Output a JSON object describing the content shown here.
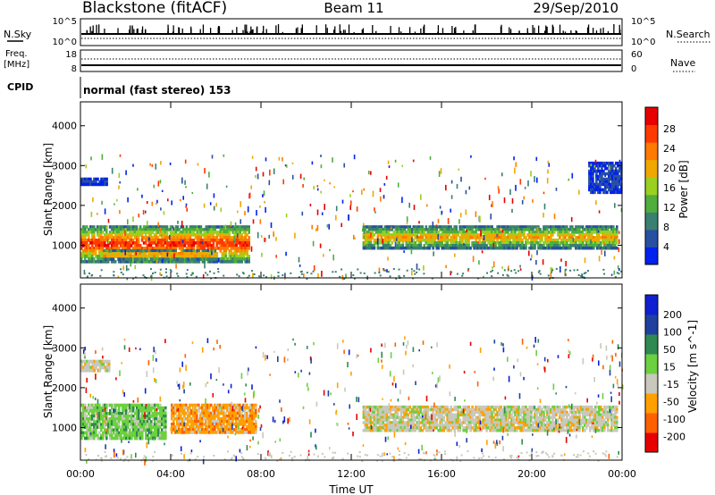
{
  "header": {
    "station": "Blackstone (fitACF)",
    "beam": "Beam 11",
    "date": "29/Sep/2010"
  },
  "top_panels": {
    "nsky_label": "N.Sky",
    "nsky_ticks": [
      "10^5",
      "10^0"
    ],
    "nsearch_label": "N.Search",
    "nsearch_ticks": [
      "10^5",
      "10^0"
    ],
    "freq_label_1": "Freq.",
    "freq_label_2": "[MHz]",
    "freq_ticks": [
      "18",
      "8"
    ],
    "nave_label": "Nave",
    "nave_ticks": [
      "60",
      "0"
    ],
    "cpid_label": "CPID",
    "cpid_text": "normal (fast stereo) 153"
  },
  "colors": {
    "power": [
      "#0022ee",
      "#2850a0",
      "#3a8070",
      "#4fae3c",
      "#9ad020",
      "#f0a800",
      "#ff7a00",
      "#ff3a00",
      "#e80000"
    ],
    "velocity": [
      "#e80000",
      "#ff6000",
      "#ffa000",
      "#c8c8bc",
      "#6cd040",
      "#2e8a50",
      "#2040a0",
      "#1020d0"
    ]
  },
  "chart_data": [
    {
      "type": "heatmap",
      "title": "",
      "xlabel": "Time UT",
      "ylabel": "Slant Range [km]",
      "xlim": [
        0,
        24
      ],
      "ylim": [
        180,
        4600
      ],
      "x_ticks": [
        "00:00",
        "04:00",
        "08:00",
        "12:00",
        "16:00",
        "20:00",
        "00:00"
      ],
      "y_ticks": [
        "1000",
        "2000",
        "3000",
        "4000"
      ],
      "colorbar": {
        "label": "Power [dB]",
        "ticks": [
          "28",
          "24",
          "20",
          "16",
          "12",
          "8",
          "4"
        ]
      },
      "bands": [
        {
          "t0": 0,
          "t1": 7.5,
          "r0": 560,
          "r1": 1500,
          "c": 8
        },
        {
          "t0": 1,
          "t1": 6,
          "r0": 620,
          "r1": 900,
          "c": 8
        },
        {
          "t0": 12.5,
          "t1": 23.8,
          "r0": 900,
          "r1": 1500,
          "c": 6
        },
        {
          "t0": 0,
          "t1": 1.2,
          "r0": 2500,
          "r1": 2700,
          "c": 1
        },
        {
          "t0": 22.5,
          "t1": 24,
          "r0": 2300,
          "r1": 3100,
          "c": 1
        }
      ]
    },
    {
      "type": "heatmap",
      "title": "",
      "xlabel": "Time UT",
      "ylabel": "Slant Range [km]",
      "xlim": [
        0,
        24
      ],
      "ylim": [
        180,
        4600
      ],
      "x_ticks": [
        "00:00",
        "04:00",
        "08:00",
        "12:00",
        "16:00",
        "20:00",
        "00:00"
      ],
      "y_ticks": [
        "1000",
        "2000",
        "3000",
        "4000"
      ],
      "colorbar": {
        "label": "Velocity [m s^-1]",
        "ticks": [
          "200",
          "100",
          "50",
          "15",
          "-15",
          "-50",
          "-100",
          "-200"
        ]
      },
      "bands": [
        {
          "t0": 0,
          "t1": 3.8,
          "r0": 700,
          "r1": 1600,
          "c": 4
        },
        {
          "t0": 4,
          "t1": 7.8,
          "r0": 850,
          "r1": 1600,
          "c": 2
        },
        {
          "t0": 12.5,
          "t1": 23.8,
          "r0": 900,
          "r1": 1550,
          "c": 3
        },
        {
          "t0": 0,
          "t1": 1.3,
          "r0": 2400,
          "r1": 2700,
          "c": 3
        }
      ]
    }
  ]
}
